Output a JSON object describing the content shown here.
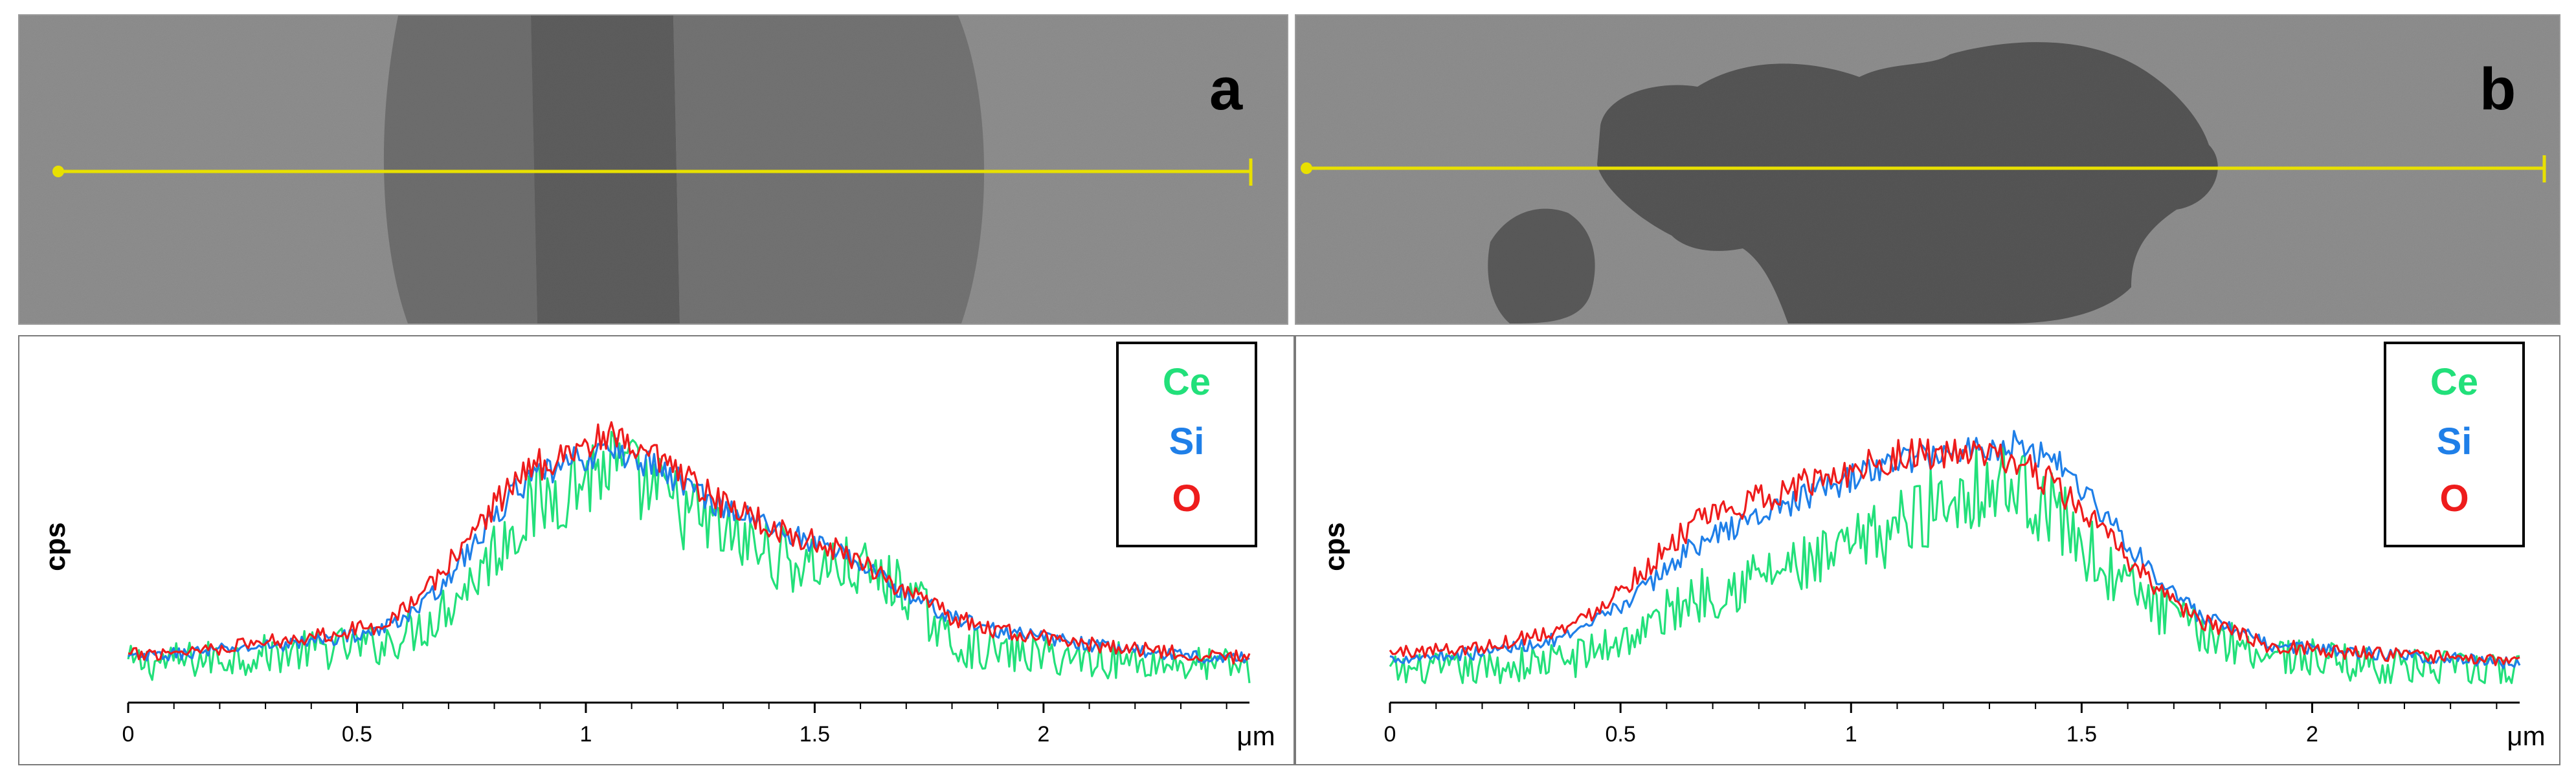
{
  "panels": [
    {
      "letter": "a",
      "legend": [
        {
          "label": "Ce",
          "color": "#22e07a"
        },
        {
          "label": "Si",
          "color": "#1f7fe8"
        },
        {
          "label": "O",
          "color": "#ee1c1c"
        }
      ]
    },
    {
      "letter": "b",
      "legend": [
        {
          "label": "Ce",
          "color": "#22e07a"
        },
        {
          "label": "Si",
          "color": "#1f7fe8"
        },
        {
          "label": "O",
          "color": "#ee1c1c"
        }
      ]
    }
  ],
  "colors": {
    "scan_line": "#e8e000",
    "ce": "#22e07a",
    "si": "#1f7fe8",
    "o": "#ee1c1c"
  },
  "chart_data": [
    {
      "type": "line",
      "panel": "a",
      "title": "",
      "xlabel": "μm",
      "ylabel": "cps",
      "xlim": [
        0,
        2.45
      ],
      "x_ticks": [
        "0",
        "0.5",
        "1",
        "1.5",
        "2"
      ],
      "x_tick_values": [
        0,
        0.5,
        1,
        1.5,
        2
      ],
      "ylim": [
        0,
        1
      ],
      "legend_position": "top-right",
      "series": [
        {
          "name": "Ce",
          "x": [
            0,
            0.2,
            0.4,
            0.55,
            0.65,
            0.75,
            0.85,
            0.95,
            1.05,
            1.15,
            1.3,
            1.45,
            1.6,
            1.7,
            1.8,
            1.9,
            2.1,
            2.3,
            2.45
          ],
          "values": [
            0.08,
            0.1,
            0.13,
            0.15,
            0.22,
            0.38,
            0.6,
            0.72,
            0.8,
            0.7,
            0.55,
            0.45,
            0.42,
            0.35,
            0.15,
            0.12,
            0.1,
            0.08,
            0.07
          ]
        },
        {
          "name": "Si",
          "x": [
            0,
            0.2,
            0.4,
            0.55,
            0.65,
            0.75,
            0.85,
            0.95,
            1.05,
            1.15,
            1.3,
            1.45,
            1.6,
            1.7,
            1.8,
            1.9,
            2.1,
            2.3,
            2.45
          ],
          "values": [
            0.1,
            0.13,
            0.16,
            0.2,
            0.3,
            0.5,
            0.72,
            0.8,
            0.86,
            0.8,
            0.65,
            0.55,
            0.45,
            0.33,
            0.25,
            0.2,
            0.15,
            0.11,
            0.1
          ]
        },
        {
          "name": "O",
          "x": [
            0,
            0.2,
            0.4,
            0.55,
            0.65,
            0.75,
            0.85,
            0.95,
            1.05,
            1.15,
            1.3,
            1.45,
            1.6,
            1.7,
            1.8,
            1.9,
            2.1,
            2.3,
            2.45
          ],
          "values": [
            0.11,
            0.14,
            0.18,
            0.22,
            0.34,
            0.55,
            0.76,
            0.85,
            0.9,
            0.82,
            0.66,
            0.55,
            0.46,
            0.34,
            0.25,
            0.2,
            0.15,
            0.12,
            0.1
          ]
        }
      ]
    },
    {
      "type": "line",
      "panel": "b",
      "title": "",
      "xlabel": "μm",
      "ylabel": "cps",
      "xlim": [
        0,
        2.45
      ],
      "x_ticks": [
        "0",
        "0.5",
        "1",
        "1.5",
        "2"
      ],
      "x_tick_values": [
        0,
        0.5,
        1,
        1.5,
        2
      ],
      "ylim": [
        0,
        1
      ],
      "legend_position": "top-right",
      "series": [
        {
          "name": "Ce",
          "x": [
            0,
            0.2,
            0.4,
            0.55,
            0.65,
            0.8,
            0.95,
            1.1,
            1.25,
            1.35,
            1.45,
            1.55,
            1.65,
            1.75,
            1.9,
            2.1,
            2.3,
            2.45
          ],
          "values": [
            0.05,
            0.06,
            0.1,
            0.2,
            0.32,
            0.4,
            0.45,
            0.58,
            0.72,
            0.74,
            0.62,
            0.42,
            0.3,
            0.2,
            0.12,
            0.08,
            0.06,
            0.05
          ]
        },
        {
          "name": "Si",
          "x": [
            0,
            0.2,
            0.4,
            0.55,
            0.65,
            0.8,
            0.95,
            1.1,
            1.25,
            1.35,
            1.45,
            1.55,
            1.65,
            1.75,
            1.9,
            2.1,
            2.3,
            2.45
          ],
          "values": [
            0.1,
            0.12,
            0.18,
            0.35,
            0.5,
            0.62,
            0.72,
            0.82,
            0.86,
            0.88,
            0.82,
            0.62,
            0.42,
            0.26,
            0.15,
            0.12,
            0.1,
            0.08
          ]
        },
        {
          "name": "O",
          "x": [
            0,
            0.2,
            0.4,
            0.55,
            0.65,
            0.8,
            0.95,
            1.1,
            1.25,
            1.35,
            1.45,
            1.55,
            1.65,
            1.75,
            1.9,
            2.1,
            2.3,
            2.45
          ],
          "values": [
            0.12,
            0.14,
            0.22,
            0.42,
            0.58,
            0.68,
            0.76,
            0.84,
            0.84,
            0.82,
            0.72,
            0.55,
            0.38,
            0.24,
            0.15,
            0.12,
            0.1,
            0.09
          ]
        }
      ]
    }
  ]
}
